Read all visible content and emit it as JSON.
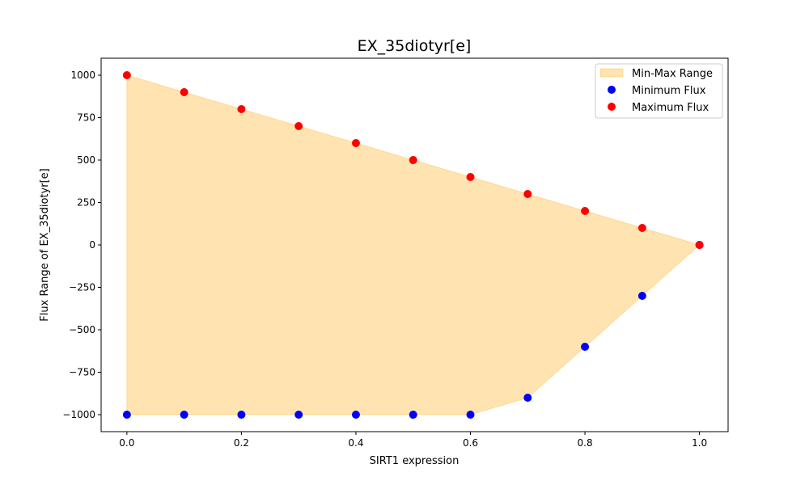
{
  "chart_data": {
    "type": "scatter",
    "title": "EX_35diotyr[e]",
    "xlabel": "SIRT1 expression",
    "ylabel": "Flux Range of EX_35diotyr[e]",
    "xlim": [
      -0.045,
      1.05
    ],
    "ylim": [
      -1100,
      1100
    ],
    "xticks": [
      0.0,
      0.2,
      0.4,
      0.6,
      0.8,
      1.0
    ],
    "xtick_labels": [
      "0.0",
      "0.2",
      "0.4",
      "0.6",
      "0.8",
      "1.0"
    ],
    "yticks": [
      1000,
      750,
      500,
      250,
      0,
      -250,
      -500,
      -750,
      -1000
    ],
    "ytick_labels": [
      "1000",
      "750",
      "500",
      "250",
      "0",
      "−250",
      "−500",
      "−750",
      "−1000"
    ],
    "x": [
      0.0,
      0.1,
      0.2,
      0.3,
      0.4,
      0.5,
      0.6,
      0.7,
      0.8,
      0.9,
      1.0
    ],
    "series": [
      {
        "name": "Minimum Flux",
        "kind": "scatter",
        "color": "#0000ff",
        "values": [
          -1000,
          -1000,
          -1000,
          -1000,
          -1000,
          -1000,
          -1000,
          -900,
          -600,
          -300,
          0
        ]
      },
      {
        "name": "Maximum Flux",
        "kind": "scatter",
        "color": "#ff0000",
        "values": [
          1000,
          900,
          800,
          700,
          600,
          500,
          400,
          300,
          200,
          100,
          0
        ]
      }
    ],
    "fill": {
      "name": "Min-Max Range",
      "color": "#ffa500",
      "alpha": 0.3
    },
    "legend": {
      "placement": "top-right",
      "entries": [
        "Min-Max Range",
        "Minimum Flux",
        "Maximum Flux"
      ]
    },
    "grid": false
  }
}
